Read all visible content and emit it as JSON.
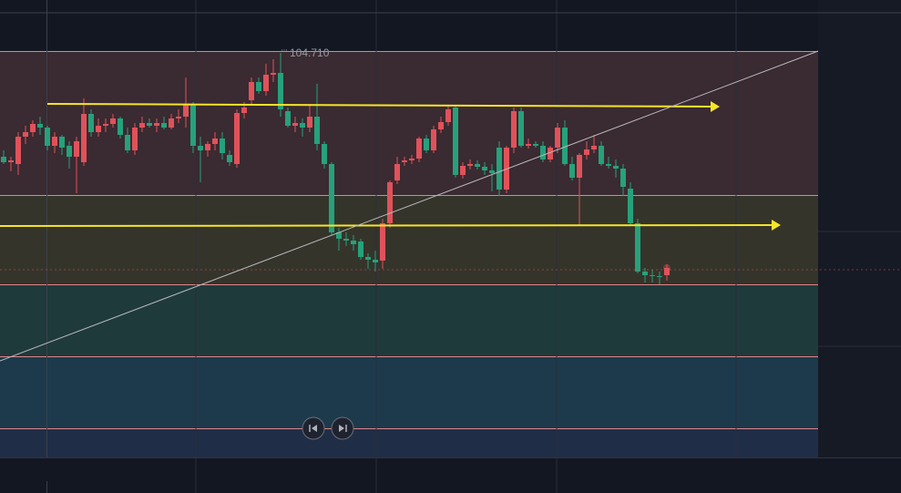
{
  "chart_data": {
    "type": "candlestick",
    "ylim": [
      100.27,
      105.29
    ],
    "up_color": "#e0525a",
    "down_color": "#26a17b",
    "open": [
      103.57,
      103.51,
      103.49,
      103.79,
      103.84,
      103.93,
      103.89,
      103.69,
      103.79,
      103.69,
      103.57,
      103.51,
      104.04,
      103.84,
      103.91,
      103.93,
      103.99,
      103.81,
      103.64,
      103.89,
      103.94,
      103.91,
      103.94,
      103.89,
      103.99,
      104.01,
      104.14,
      103.69,
      103.64,
      103.71,
      103.77,
      103.59,
      103.49,
      104.05,
      104.19,
      104.39,
      104.29,
      104.47,
      104.49,
      104.07,
      103.91,
      103.94,
      103.89,
      104.01,
      103.71,
      103.49,
      102.74,
      102.67,
      102.65,
      102.64,
      102.47,
      102.44,
      102.43,
      102.84,
      103.31,
      103.51,
      103.53,
      103.55,
      103.77,
      103.64,
      103.87,
      103.95,
      104.11,
      103.37,
      103.47,
      103.49,
      103.46,
      103.42,
      103.67,
      103.21,
      103.67,
      104.07,
      103.69,
      103.71,
      103.69,
      103.54,
      103.67,
      103.89,
      103.49,
      103.34,
      103.59,
      103.65,
      103.69,
      103.49,
      103.47,
      103.44,
      103.22,
      102.84,
      102.31,
      102.27,
      102.26,
      102.27
    ],
    "high": [
      103.64,
      103.57,
      103.84,
      103.91,
      103.97,
      104.01,
      103.91,
      103.84,
      103.81,
      103.74,
      103.79,
      104.21,
      104.09,
      103.99,
      103.99,
      104.04,
      104.01,
      103.89,
      103.94,
      104.01,
      103.99,
      103.99,
      104.01,
      104.04,
      104.09,
      104.44,
      104.17,
      103.79,
      103.74,
      103.84,
      103.84,
      103.64,
      104.09,
      104.17,
      104.44,
      104.44,
      104.59,
      104.64,
      104.71,
      104.11,
      104.01,
      103.99,
      104.14,
      104.37,
      103.74,
      103.51,
      102.79,
      102.74,
      102.71,
      102.67,
      102.51,
      102.54,
      102.89,
      103.31,
      103.57,
      103.57,
      103.59,
      103.79,
      103.81,
      103.91,
      104.01,
      104.14,
      104.14,
      103.51,
      103.54,
      103.53,
      103.51,
      103.49,
      103.74,
      103.69,
      104.11,
      104.11,
      103.77,
      103.74,
      103.74,
      103.69,
      103.94,
      103.97,
      103.57,
      103.61,
      103.74,
      103.81,
      103.74,
      103.57,
      103.54,
      103.49,
      103.29,
      102.89,
      102.35,
      102.33,
      102.31,
      102.39
    ],
    "low": [
      103.49,
      103.41,
      103.37,
      103.71,
      103.79,
      103.81,
      103.64,
      103.61,
      103.59,
      103.44,
      103.17,
      103.47,
      103.79,
      103.79,
      103.84,
      103.89,
      103.77,
      103.61,
      103.59,
      103.84,
      103.89,
      103.84,
      103.87,
      103.87,
      103.94,
      103.89,
      103.61,
      103.29,
      103.57,
      103.64,
      103.54,
      103.47,
      103.45,
      103.99,
      104.14,
      104.26,
      104.24,
      104.39,
      104.01,
      103.89,
      103.84,
      103.79,
      103.84,
      103.64,
      103.44,
      102.71,
      102.54,
      102.59,
      102.54,
      102.44,
      102.34,
      102.31,
      102.34,
      102.79,
      103.27,
      103.47,
      103.49,
      103.51,
      103.61,
      103.61,
      103.83,
      103.91,
      103.34,
      103.33,
      103.43,
      103.43,
      103.37,
      103.19,
      103.14,
      103.17,
      103.61,
      103.67,
      103.66,
      103.67,
      103.51,
      103.51,
      103.61,
      103.47,
      103.31,
      102.81,
      103.54,
      103.61,
      103.47,
      103.44,
      103.34,
      103.14,
      102.81,
      102.29,
      102.19,
      102.19,
      102.17,
      102.21
    ],
    "close": [
      103.51,
      103.53,
      103.79,
      103.84,
      103.93,
      103.89,
      103.69,
      103.79,
      103.67,
      103.57,
      103.74,
      104.04,
      103.84,
      103.91,
      103.93,
      103.99,
      103.81,
      103.64,
      103.89,
      103.94,
      103.91,
      103.94,
      103.89,
      103.99,
      104.01,
      104.14,
      103.69,
      103.64,
      103.71,
      103.77,
      103.61,
      103.51,
      104.05,
      104.11,
      104.39,
      104.29,
      104.47,
      104.49,
      104.09,
      103.91,
      103.94,
      103.89,
      104.01,
      103.71,
      103.49,
      102.74,
      102.67,
      102.65,
      102.61,
      102.47,
      102.44,
      102.41,
      102.84,
      103.29,
      103.49,
      103.53,
      103.55,
      103.77,
      103.64,
      103.87,
      103.95,
      104.09,
      103.37,
      103.47,
      103.49,
      103.46,
      103.42,
      103.39,
      103.21,
      103.67,
      104.07,
      103.69,
      103.71,
      103.69,
      103.54,
      103.67,
      103.89,
      103.49,
      103.34,
      103.59,
      103.65,
      103.69,
      103.49,
      103.47,
      103.44,
      103.24,
      102.84,
      102.31,
      102.27,
      102.26,
      102.25,
      102.35
    ],
    "high_labels": [
      null,
      null,
      null,
      null,
      null,
      null,
      null,
      null,
      null,
      null,
      null,
      null,
      null,
      null,
      null,
      null,
      null,
      null,
      null,
      null,
      null,
      null,
      null,
      null,
      null,
      null,
      null,
      null,
      null,
      null,
      null,
      null,
      null,
      null,
      null,
      null,
      null,
      null,
      "104.710",
      null,
      null,
      null,
      null,
      null,
      null,
      null,
      null,
      null,
      null,
      null,
      null,
      null,
      null,
      null,
      null,
      null,
      null,
      null,
      null,
      null,
      null,
      null,
      null,
      null,
      null,
      null,
      null,
      null,
      null,
      null,
      null,
      null,
      null,
      null,
      null,
      null,
      null,
      null,
      null,
      null,
      null,
      null,
      null,
      null,
      null,
      null,
      null,
      null,
      null,
      null,
      null,
      null
    ],
    "zones": {
      "levels": [
        104.73,
        103.15,
        102.17,
        101.38,
        100.59
      ],
      "colors": [
        "#3a2a31",
        "#35342b",
        "#1f3a3b",
        "#1d3a4d",
        "#1f2e46"
      ],
      "line_color": "#e0848a"
    },
    "lines": [
      {
        "x": [
          6,
          98.25
        ],
        "y": [
          104.15,
          104.12
        ],
        "color": "#f5e52a",
        "arrow": true
      },
      {
        "x": [
          -0.5,
          106.625
        ],
        "y": [
          102.81,
          102.82
        ],
        "color": "#f5e52a",
        "arrow": true
      },
      {
        "x": [
          -0.5,
          111.75
        ],
        "y": [
          101.33,
          104.73
        ],
        "color": "#b8b8bd",
        "arrow": false
      }
    ]
  }
}
